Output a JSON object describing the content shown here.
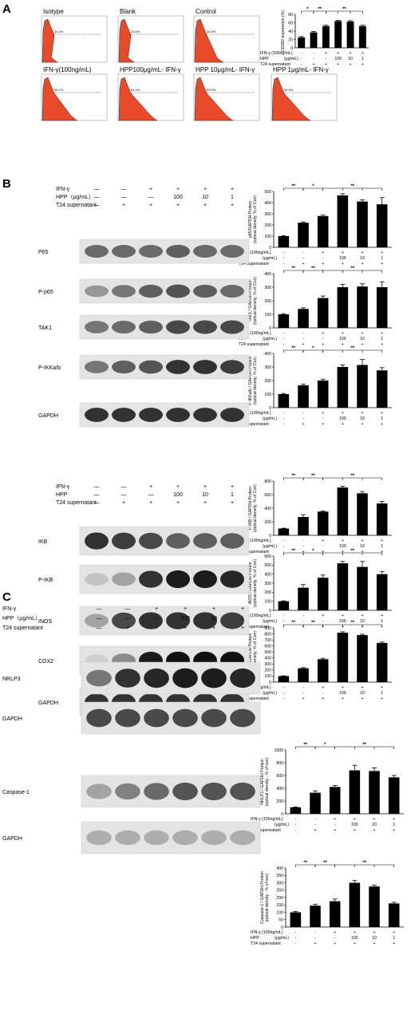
{
  "panels": {
    "a": "A",
    "b": "B",
    "c": "C"
  },
  "panelA": {
    "histograms": [
      {
        "title": "Isotype",
        "pct": "10.2%",
        "peak": 0.15
      },
      {
        "title": "Blank",
        "pct": "23.6%",
        "peak": 0.15
      },
      {
        "title": "Control",
        "pct": "34.5%",
        "peak": 0.35
      },
      {
        "title": "IFN-γ(100ng/mL)",
        "pct": "56.1%",
        "peak": 0.45
      },
      {
        "title": "HPP100μg/mL- IFN-γ",
        "pct": "64.4%",
        "peak": 0.5
      },
      {
        "title": "HPP 10μg/mL- IFN-γ",
        "pct": "63.9%",
        "peak": 0.5
      },
      {
        "title": "HPP 1μg/mL- IFN-γ",
        "pct": "53.6%",
        "peak": 0.5
      }
    ]
  },
  "blots": {
    "b1": {
      "conditions": [
        {
          "label": "IFN-γ",
          "values": [
            "—",
            "—",
            "+",
            "+",
            "+",
            "+"
          ]
        },
        {
          "label": "HPP（μg/mL）",
          "values": [
            "—",
            "—",
            "—",
            "100",
            "10",
            "1"
          ]
        },
        {
          "label": "T24 supernatant",
          "values": [
            "—",
            "+",
            "+",
            "+",
            "+",
            "+"
          ]
        }
      ],
      "bands": [
        {
          "label": "P65",
          "intensities": [
            0.55,
            0.55,
            0.55,
            0.6,
            0.55,
            0.55
          ]
        },
        {
          "label": "P-p65",
          "intensities": [
            0.35,
            0.5,
            0.6,
            0.65,
            0.6,
            0.55
          ]
        },
        {
          "label": "TAK1",
          "intensities": [
            0.5,
            0.55,
            0.6,
            0.7,
            0.7,
            0.7
          ]
        },
        {
          "label": "P-IKKa/b",
          "intensities": [
            0.5,
            0.6,
            0.65,
            0.8,
            0.8,
            0.75
          ]
        },
        {
          "label": "GAPDH",
          "intensities": [
            0.8,
            0.8,
            0.8,
            0.8,
            0.8,
            0.8
          ]
        }
      ]
    },
    "b2": {
      "conditions": [
        {
          "label": "IFN-γ",
          "values": [
            "—",
            "—",
            "+",
            "+",
            "+",
            "+"
          ]
        },
        {
          "label": "HPP",
          "values": [
            "—",
            "—",
            "—",
            "100",
            "10",
            "1"
          ]
        },
        {
          "label": "T24 supernatant",
          "values": [
            "—",
            "+",
            "+",
            "+",
            "+",
            "+"
          ]
        }
      ],
      "bands": [
        {
          "label": "IKB",
          "intensities": [
            0.8,
            0.75,
            0.7,
            0.6,
            0.6,
            0.6
          ]
        },
        {
          "label": "P-IKB",
          "intensities": [
            0.15,
            0.3,
            0.8,
            0.9,
            0.9,
            0.85
          ]
        },
        {
          "label": "INOS",
          "intensities": [
            0.3,
            0.7,
            0.8,
            0.8,
            0.8,
            0.75
          ]
        },
        {
          "label": "COX2",
          "intensities": [
            0.1,
            0.4,
            0.9,
            0.95,
            0.95,
            0.95
          ]
        },
        {
          "label": "GAPDH",
          "intensities": [
            0.8,
            0.8,
            0.8,
            0.8,
            0.8,
            0.8
          ]
        }
      ]
    },
    "c": {
      "conditions": [
        {
          "label": "IFN-γ",
          "values": [
            "—",
            "—",
            "+",
            "+",
            "+",
            "+"
          ]
        },
        {
          "label": "HPP（μg/mL）",
          "values": [
            "—",
            "—",
            "—",
            "100",
            "10",
            "1"
          ]
        },
        {
          "label": "T24 supernatant",
          "values": [
            "—",
            "+",
            "+",
            "+",
            "+",
            "+"
          ]
        }
      ],
      "bands": [
        {
          "label": "NRLP3",
          "intensities": [
            0.5,
            0.8,
            0.85,
            0.9,
            0.9,
            0.85
          ]
        },
        {
          "label": "GAPDH",
          "intensities": [
            0.7,
            0.7,
            0.7,
            0.7,
            0.7,
            0.7
          ]
        },
        {
          "label": "Caspase-1",
          "intensities": [
            0.3,
            0.45,
            0.55,
            0.65,
            0.65,
            0.65
          ]
        },
        {
          "label": "GAPDH",
          "intensities": [
            0.25,
            0.25,
            0.25,
            0.25,
            0.25,
            0.25
          ]
        }
      ]
    }
  },
  "conditionRowsSmall": [
    {
      "label": "IFN-γ (100ng/mL)",
      "values": [
        "-",
        "-",
        "+",
        "+",
        "+",
        "+"
      ]
    },
    {
      "label": "HPP",
      "unit": "(μg/mL)",
      "values": [
        "-",
        "-",
        "-",
        "100",
        "10",
        "1"
      ]
    },
    {
      "label": "T24 supernatant",
      "values": [
        "-",
        "+",
        "+",
        "+",
        "+",
        "+"
      ]
    }
  ],
  "chart_data": [
    {
      "type": "bar",
      "ylabel": "CD282 expression (%)",
      "ylim": [
        0,
        80
      ],
      "yticks": [
        0,
        20,
        40,
        60,
        80
      ],
      "values": [
        25,
        37,
        52,
        64,
        63,
        52
      ],
      "errors": [
        2,
        2,
        2,
        2,
        2,
        2
      ],
      "significance": [
        "*",
        "**",
        "**"
      ]
    },
    {
      "type": "bar",
      "ylabel": "p65/GAPDH Protein",
      "ylabel2": "(optical density, % of Con)",
      "ylim": [
        0,
        500
      ],
      "yticks": [
        0,
        100,
        200,
        300,
        400,
        500
      ],
      "values": [
        100,
        220,
        280,
        465,
        410,
        385
      ],
      "errors": [
        5,
        8,
        8,
        15,
        15,
        60
      ],
      "significance": [
        "**",
        "*",
        "**"
      ]
    },
    {
      "type": "bar",
      "ylabel": "TAK1 / GAPDH Protein",
      "ylabel2": "(optical density, % of Con)",
      "ylim": [
        0,
        400
      ],
      "yticks": [
        0,
        100,
        200,
        300,
        400
      ],
      "values": [
        100,
        140,
        220,
        300,
        305,
        300
      ],
      "errors": [
        5,
        8,
        15,
        20,
        20,
        40
      ],
      "significance": [
        "**",
        "**",
        "**"
      ]
    },
    {
      "type": "bar",
      "ylabel": "P-IKKa/b / GAPDH Protein",
      "ylabel2": "(optical density, % of Con)",
      "ylim": [
        0,
        400
      ],
      "yticks": [
        0,
        100,
        200,
        300,
        400
      ],
      "values": [
        100,
        165,
        200,
        300,
        315,
        275
      ],
      "errors": [
        5,
        8,
        10,
        15,
        40,
        20
      ],
      "significance": [
        "**",
        "*",
        "**"
      ]
    },
    {
      "type": "bar",
      "ylabel": "P-IKB / GAPDH Protein",
      "ylabel2": "(optical density, % of Con)",
      "ylim": [
        0,
        800
      ],
      "yticks": [
        0,
        200,
        400,
        600,
        800
      ],
      "values": [
        100,
        270,
        350,
        705,
        620,
        470
      ],
      "errors": [
        5,
        35,
        10,
        20,
        25,
        30
      ],
      "significance": [
        "**",
        "**",
        "**"
      ]
    },
    {
      "type": "bar",
      "ylabel": "iNOS / GAPDH Protein",
      "ylabel2": "(optical density, % of Con)",
      "ylim": [
        0,
        600
      ],
      "yticks": [
        0,
        100,
        200,
        300,
        400,
        500,
        600
      ],
      "values": [
        100,
        250,
        360,
        520,
        480,
        400
      ],
      "errors": [
        5,
        35,
        30,
        20,
        60,
        30
      ],
      "significance": [
        "**",
        "*",
        "**"
      ]
    },
    {
      "type": "bar",
      "ylabel": "COX2 / GAPDH Protein",
      "ylabel2": "(optical density, % of Con)",
      "ylim": [
        0,
        900
      ],
      "yticks": [
        0,
        100,
        200,
        300,
        400,
        500,
        600,
        700,
        800,
        900
      ],
      "values": [
        100,
        230,
        380,
        820,
        780,
        650
      ],
      "errors": [
        5,
        10,
        15,
        15,
        15,
        15
      ],
      "significance": [
        "**",
        "**",
        "**"
      ]
    },
    {
      "type": "bar",
      "ylabel": "NRLP3 / GAPDH Protein",
      "ylabel2": "(optical density , % of con)",
      "ylim": [
        0,
        1000
      ],
      "yticks": [
        0,
        200,
        400,
        600,
        800,
        1000
      ],
      "values": [
        100,
        330,
        420,
        680,
        670,
        570
      ],
      "errors": [
        5,
        25,
        25,
        80,
        50,
        30
      ],
      "significance": [
        "**",
        "*",
        "**"
      ]
    },
    {
      "type": "bar",
      "ylabel": "Caspase-1 / GAPDH Protein",
      "ylabel2": "(optical density , % of con)",
      "ylim": [
        0,
        400
      ],
      "yticks": [
        0,
        50,
        100,
        150,
        200,
        250,
        300,
        350,
        400
      ],
      "values": [
        100,
        145,
        175,
        300,
        275,
        160
      ],
      "errors": [
        5,
        10,
        15,
        15,
        10,
        8
      ],
      "significance": [
        "**",
        "**",
        "**"
      ]
    }
  ]
}
